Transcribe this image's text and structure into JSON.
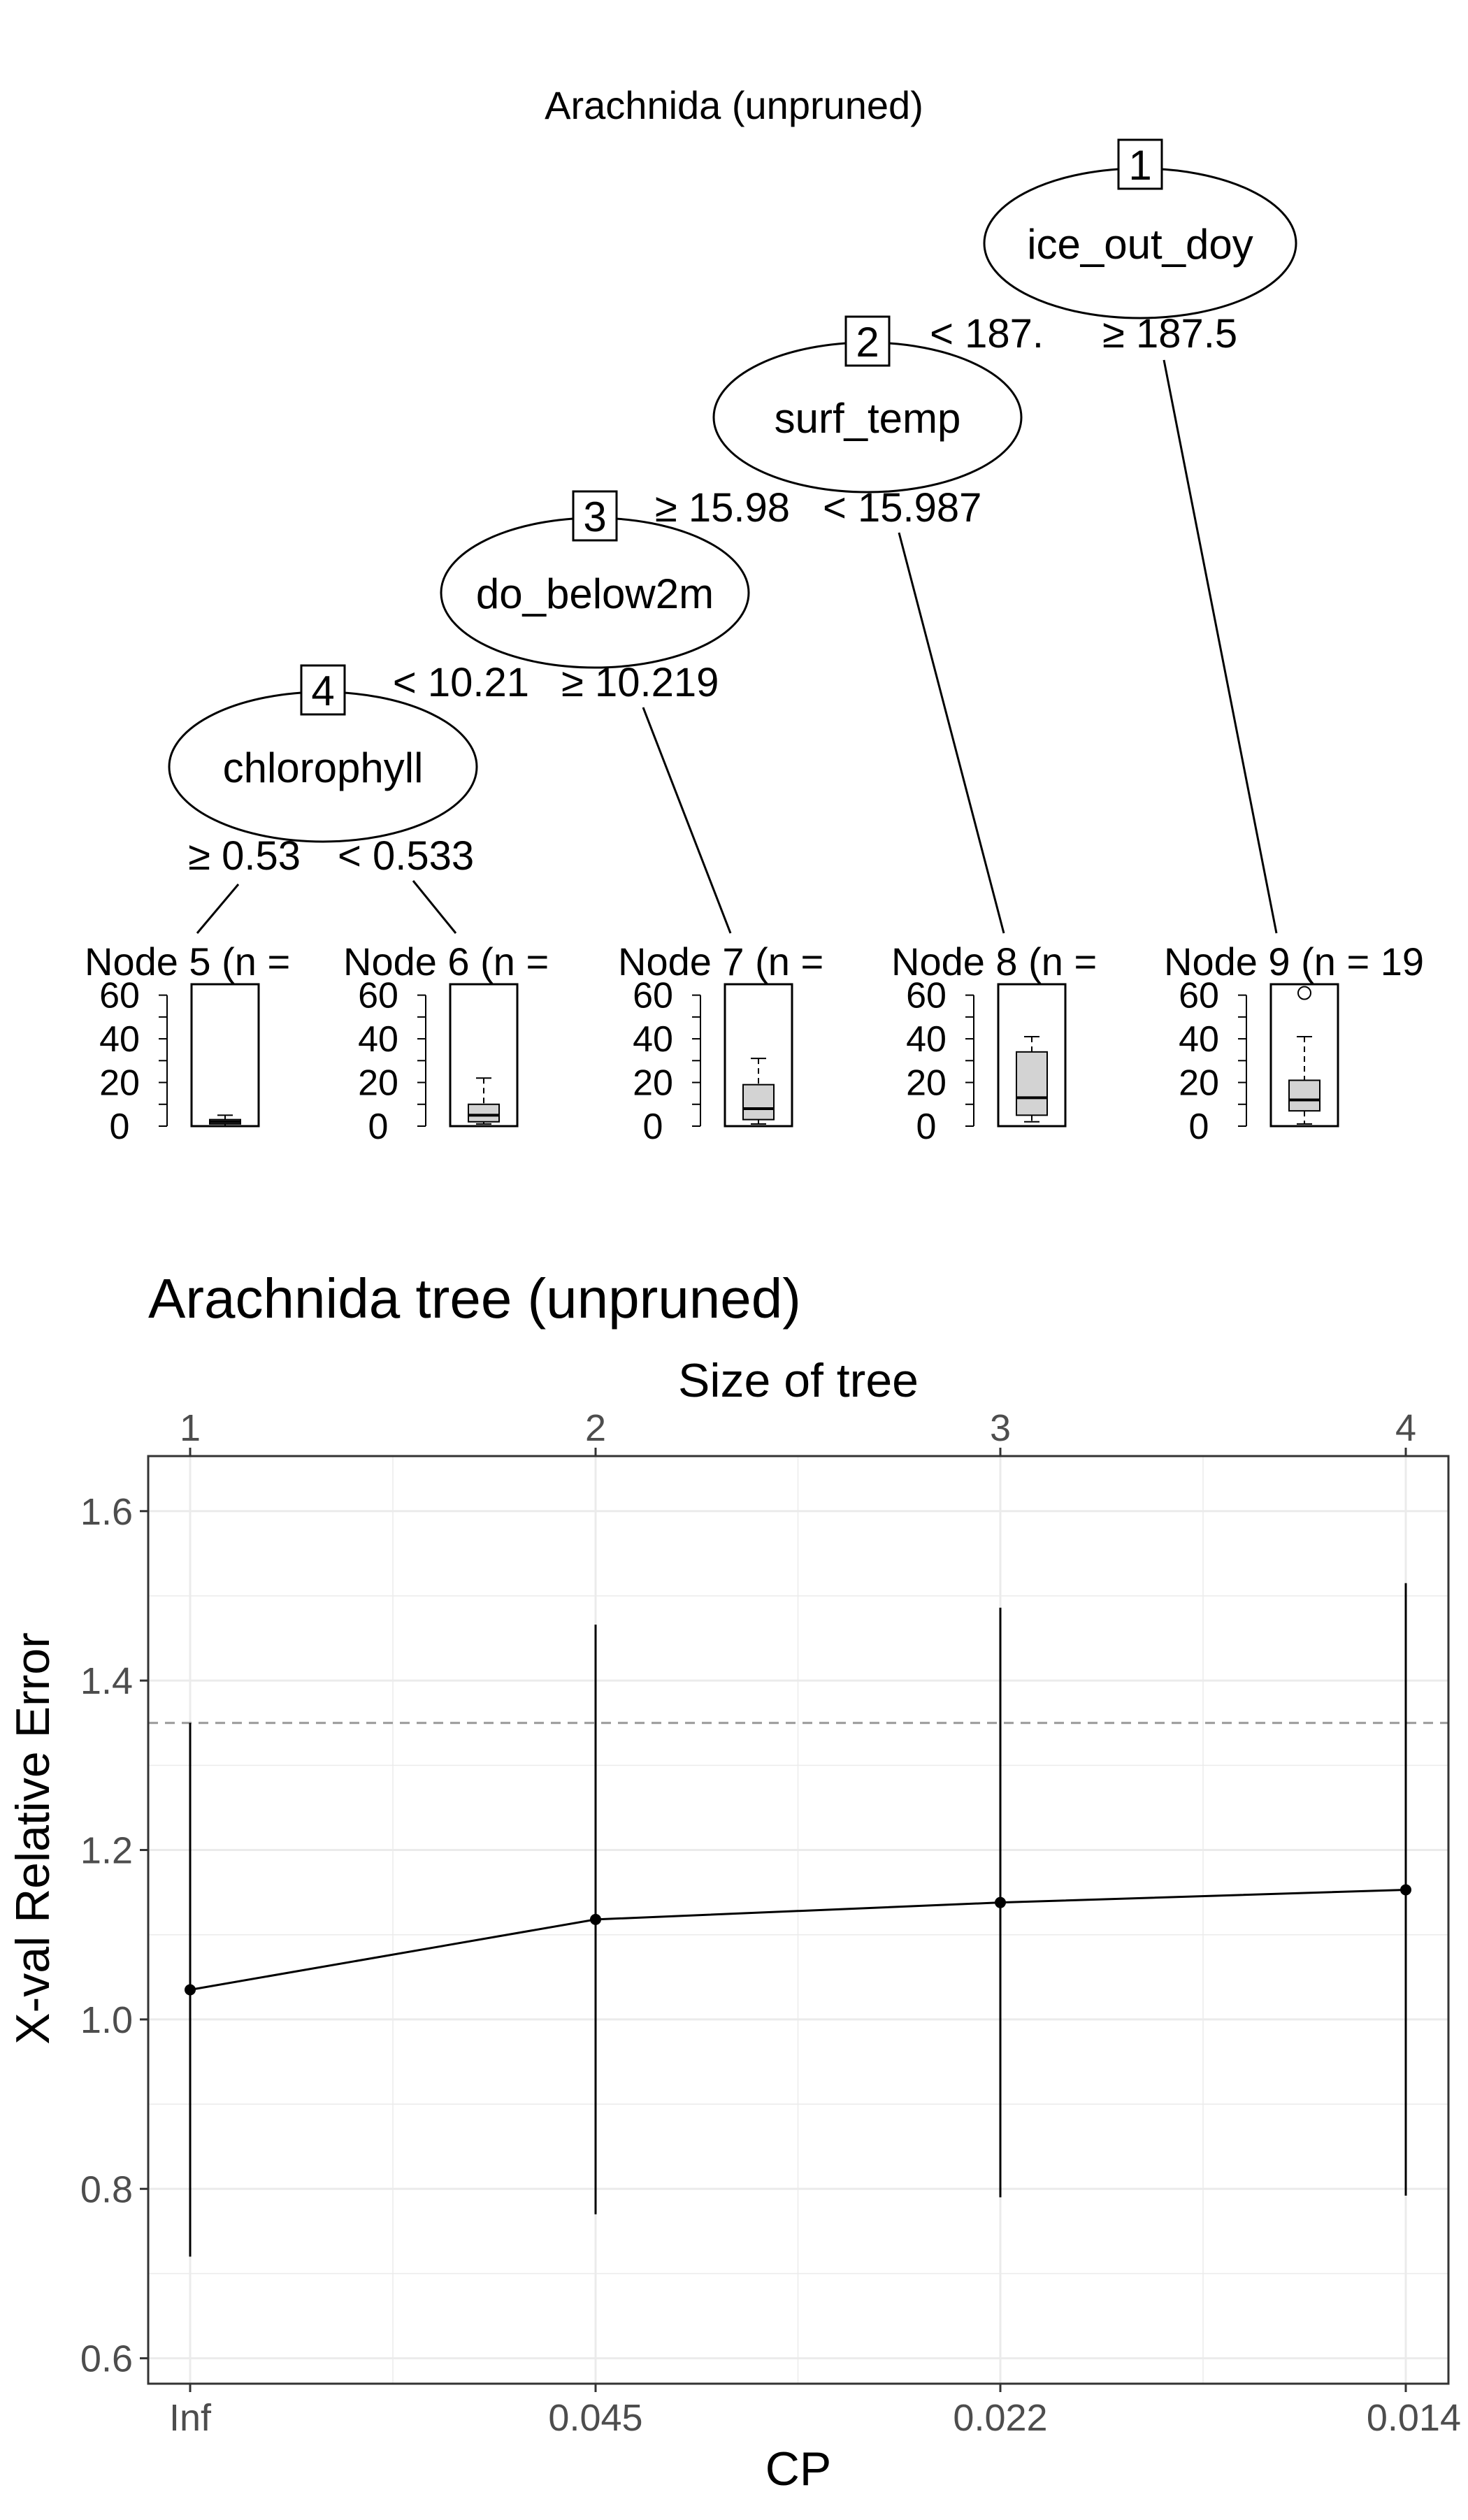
{
  "tree": {
    "title": "Arachnida (unpruned)",
    "nodes": [
      {
        "id": "1",
        "label": "ice_out_doy"
      },
      {
        "id": "2",
        "label": "surf_temp"
      },
      {
        "id": "3",
        "label": "do_below2m"
      },
      {
        "id": "4",
        "label": "chlorophyll"
      }
    ],
    "splits": [
      {
        "left": "< 187.",
        "right": "≥ 187.5"
      },
      {
        "left": "≥ 15.98",
        "right": "< 15.987"
      },
      {
        "left": "< 10.21",
        "right": "≥ 10.219"
      },
      {
        "left": "≥ 0.53",
        "right": "< 0.533"
      }
    ],
    "terminals": [
      {
        "label": "Node 5 (n =",
        "box": {
          "min": 0,
          "q1": 1,
          "median": 2,
          "q3": 3,
          "max": 5,
          "outliers": []
        }
      },
      {
        "label": "Node 6 (n =",
        "box": {
          "min": 1,
          "q1": 2,
          "median": 5,
          "q3": 10,
          "max": 22,
          "outliers": []
        }
      },
      {
        "label": "Node 7 (n =",
        "box": {
          "min": 1,
          "q1": 3,
          "median": 8,
          "q3": 19,
          "max": 31,
          "outliers": []
        }
      },
      {
        "label": "Node 8 (n =",
        "box": {
          "min": 2,
          "q1": 5,
          "median": 13,
          "q3": 34,
          "max": 41,
          "outliers": []
        }
      },
      {
        "label": "Node 9 (n = 19",
        "box": {
          "min": 1,
          "q1": 7,
          "median": 12,
          "q3": 21,
          "max": 41,
          "outliers": [
            61
          ]
        }
      }
    ],
    "box_axis": {
      "ticks": [
        "60",
        "40",
        "20",
        "0"
      ],
      "range": [
        0,
        65
      ]
    }
  },
  "chart_data": {
    "type": "line",
    "title": "Arachnida tree (unpruned)",
    "top_axis_label": "Size of tree",
    "xlabel": "CP",
    "ylabel": "X-val Relative Error",
    "x_ticks": [
      "Inf",
      "0.045",
      "0.022",
      "0.014"
    ],
    "size_ticks": [
      "1",
      "2",
      "3",
      "4"
    ],
    "y_ticks": [
      "0.6",
      "0.8",
      "1.0",
      "1.2",
      "1.4",
      "1.6"
    ],
    "ylim": [
      0.57,
      1.665
    ],
    "points": [
      {
        "cp": "Inf",
        "size": 1,
        "xerror": 1.035,
        "lower": 0.72,
        "upper": 1.35
      },
      {
        "cp": "0.045",
        "size": 2,
        "xerror": 1.118,
        "lower": 0.77,
        "upper": 1.466
      },
      {
        "cp": "0.022",
        "size": 3,
        "xerror": 1.138,
        "lower": 0.79,
        "upper": 1.486
      },
      {
        "cp": "0.014",
        "size": 4,
        "xerror": 1.153,
        "lower": 0.792,
        "upper": 1.515
      }
    ],
    "reference_line": 1.35,
    "grid": true
  },
  "colors": {
    "box_fill": "#d3d3d3",
    "grid": "#ebebeb",
    "ref_line": "#999999",
    "axis_text": "#4d4d4d"
  }
}
